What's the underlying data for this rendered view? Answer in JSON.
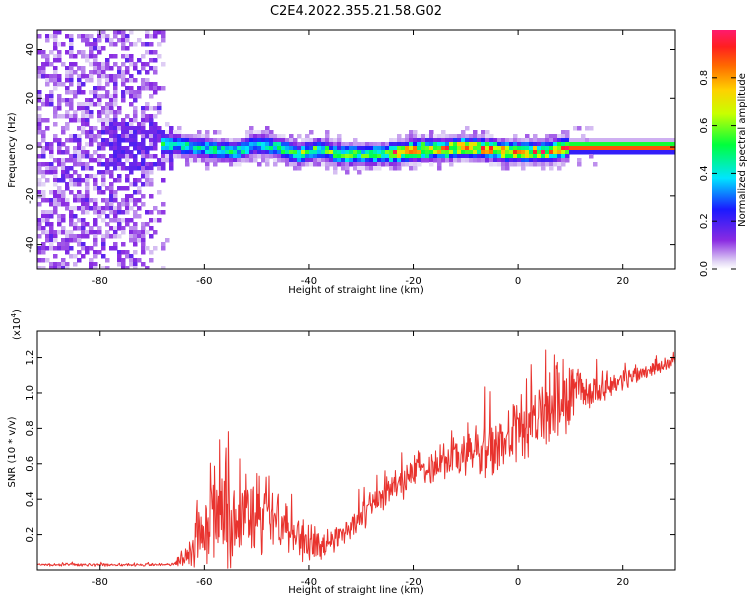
{
  "title": "C2E4.2022.355.21.58.G02",
  "chart_data": [
    {
      "type": "heatmap",
      "xlabel": "Height of straight line (km)",
      "ylabel": "Frequency (Hz)",
      "xlim": [
        -92,
        30
      ],
      "ylim": [
        -50,
        48
      ],
      "xticks": [
        -80,
        -60,
        -40,
        -20,
        0,
        20
      ],
      "yticks": [
        -40,
        -20,
        0,
        20,
        40
      ],
      "ridge": [
        {
          "x": -66,
          "y": 1
        },
        {
          "x": -62,
          "y": 0
        },
        {
          "x": -58,
          "y": -1
        },
        {
          "x": -54,
          "y": -2
        },
        {
          "x": -50,
          "y": 1
        },
        {
          "x": -46,
          "y": 0
        },
        {
          "x": -42,
          "y": -3
        },
        {
          "x": -38,
          "y": -1
        },
        {
          "x": -34,
          "y": -3
        },
        {
          "x": -30,
          "y": -3
        },
        {
          "x": -26,
          "y": -3
        },
        {
          "x": -22,
          "y": -2
        },
        {
          "x": -18,
          "y": -1
        },
        {
          "x": -14,
          "y": -1
        },
        {
          "x": -10,
          "y": 0
        },
        {
          "x": -6,
          "y": -1
        },
        {
          "x": -2,
          "y": -2
        },
        {
          "x": 2,
          "y": -2
        },
        {
          "x": 6,
          "y": -2
        },
        {
          "x": 10,
          "y": 0
        },
        {
          "x": 14,
          "y": 0
        },
        {
          "x": 20,
          "y": 0
        },
        {
          "x": 25,
          "y": 0
        },
        {
          "x": 30,
          "y": 0
        }
      ],
      "noise_region_xmax": -66,
      "colorbar": {
        "label": "Normalized spectral amplitude",
        "range": [
          0,
          1
        ],
        "ticks": [
          "0.0",
          "0.2",
          "0.4",
          "0.6",
          "0.8"
        ],
        "tick_values": [
          0,
          0.2,
          0.4,
          0.6,
          0.8
        ],
        "colormap": "rainbow"
      }
    },
    {
      "type": "line",
      "xlabel": "Height of straight line (km)",
      "ylabel": "SNR (10 * v/v)",
      "yscale_label": "(x10",
      "yscale_exp": "4",
      "yscale_close": ")",
      "xlim": [
        -92,
        30
      ],
      "ylim": [
        0,
        1.35
      ],
      "xticks": [
        -80,
        -60,
        -40,
        -20,
        0,
        20
      ],
      "yticks": [
        0.2,
        0.4,
        0.6,
        0.8,
        1.0,
        1.2
      ],
      "ytick_labels": [
        "0.2",
        "0.4",
        "0.6",
        "0.8",
        "1.0",
        "1.2"
      ],
      "color": "#e8322d",
      "trend": [
        {
          "x": -92,
          "y": 0.03,
          "amp": 0.01
        },
        {
          "x": -66,
          "y": 0.03,
          "amp": 0.01
        },
        {
          "x": -64,
          "y": 0.07,
          "amp": 0.05
        },
        {
          "x": -62,
          "y": 0.15,
          "amp": 0.18
        },
        {
          "x": -58,
          "y": 0.28,
          "amp": 0.32
        },
        {
          "x": -56,
          "y": 0.35,
          "amp": 0.4
        },
        {
          "x": -52,
          "y": 0.3,
          "amp": 0.3
        },
        {
          "x": -46,
          "y": 0.3,
          "amp": 0.28
        },
        {
          "x": -42,
          "y": 0.2,
          "amp": 0.2
        },
        {
          "x": -38,
          "y": 0.12,
          "amp": 0.1
        },
        {
          "x": -35,
          "y": 0.18,
          "amp": 0.08
        },
        {
          "x": -30,
          "y": 0.3,
          "amp": 0.1
        },
        {
          "x": -25,
          "y": 0.45,
          "amp": 0.12
        },
        {
          "x": -20,
          "y": 0.55,
          "amp": 0.12
        },
        {
          "x": -15,
          "y": 0.62,
          "amp": 0.14
        },
        {
          "x": -10,
          "y": 0.66,
          "amp": 0.18
        },
        {
          "x": -5,
          "y": 0.68,
          "amp": 0.22
        },
        {
          "x": 0,
          "y": 0.78,
          "amp": 0.2
        },
        {
          "x": 5,
          "y": 0.88,
          "amp": 0.28
        },
        {
          "x": 8,
          "y": 0.95,
          "amp": 0.32
        },
        {
          "x": 12,
          "y": 1.0,
          "amp": 0.14
        },
        {
          "x": 18,
          "y": 1.05,
          "amp": 0.08
        },
        {
          "x": 24,
          "y": 1.12,
          "amp": 0.06
        },
        {
          "x": 30,
          "y": 1.18,
          "amp": 0.04
        }
      ]
    }
  ],
  "colors": {
    "line": "#e8322d",
    "axis": "#000000"
  }
}
